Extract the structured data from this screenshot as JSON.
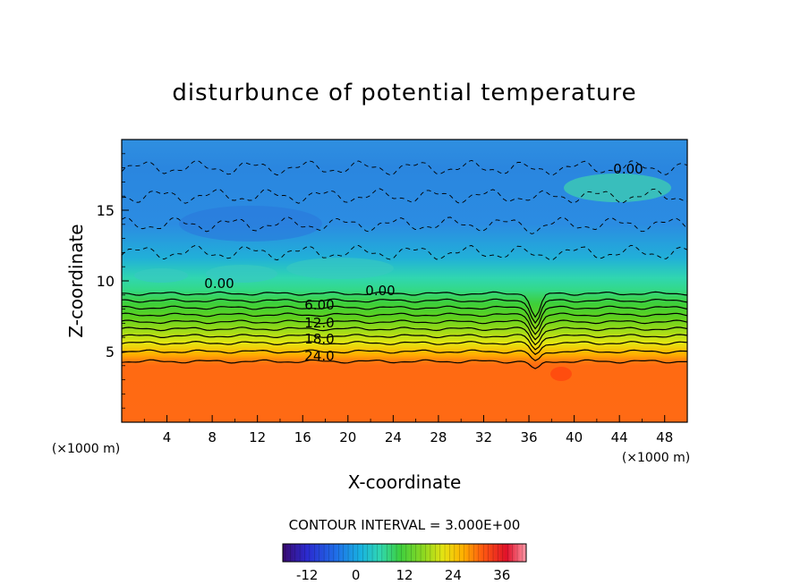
{
  "chart_data": {
    "type": "heatmap",
    "title": "disturbunce of potential temperature",
    "xlabel": "X-coordinate",
    "ylabel": "Z-coordinate",
    "x_unit": "(×1000 m)",
    "z_unit": "(×1000 m)",
    "xlim": [
      0,
      50
    ],
    "ylim": [
      0,
      20
    ],
    "x_ticks": [
      "4",
      "8",
      "12",
      "16",
      "20",
      "24",
      "28",
      "32",
      "36",
      "40",
      "44",
      "48"
    ],
    "y_ticks": [
      "5",
      "10",
      "15"
    ],
    "contour_interval_label": "CONTOUR INTERVAL = 3.000E+00",
    "contour_labels": [
      "0.00",
      "0.00",
      "0.00",
      "6.00",
      "12.0",
      "18.0",
      "24.0"
    ],
    "colorbar": {
      "range": [
        -18,
        42
      ],
      "ticks": [
        "-12",
        "0",
        "12",
        "24",
        "36"
      ]
    },
    "field_description_values": [
      {
        "z_range": [
          0,
          4.3
        ],
        "value": 33
      },
      {
        "z_range": [
          4.3,
          9.5
        ],
        "value_range": [
          24,
          3
        ]
      },
      {
        "z_range": [
          9.5,
          20
        ],
        "value_range": [
          0,
          -9
        ]
      }
    ]
  }
}
